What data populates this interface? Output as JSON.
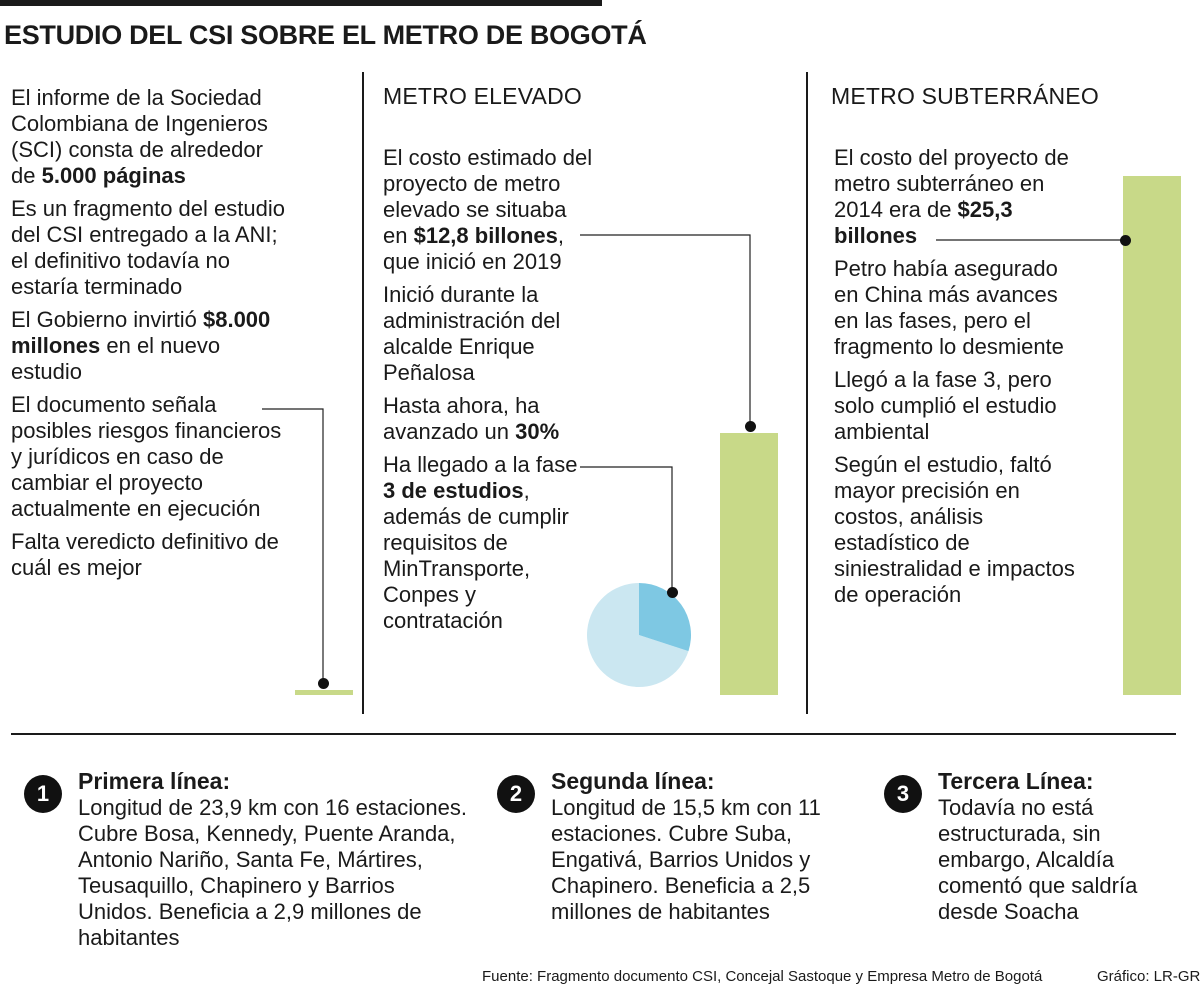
{
  "title": "ESTUDIO DEL CSI SOBRE EL METRO DE BOGOTÁ",
  "intro": {
    "paragraphs": [
      {
        "pre": "El informe de la Sociedad Colombiana de Ingenieros (SCI) consta de alrededor de ",
        "bold": "5.000 páginas",
        "post": ""
      },
      {
        "pre": "Es un fragmento del estudio del CSI entregado a la ANI; el definitivo todavía no estaría terminado",
        "bold": "",
        "post": ""
      },
      {
        "pre": "El Gobierno invirtió ",
        "bold": "$8.000 millones",
        "post": " en el nuevo estudio"
      },
      {
        "pre": "El documento señala posibles riesgos financieros y jurídicos en caso de cambiar el proyecto actualmente en ejecución",
        "bold": "",
        "post": ""
      },
      {
        "pre": "Falta veredicto definitivo de cuál es mejor",
        "bold": "",
        "post": ""
      }
    ]
  },
  "elevado": {
    "heading": "METRO ELEVADO",
    "paragraphs": [
      {
        "pre": "El costo estimado del proyecto de metro elevado se situaba en ",
        "bold": "$12,8 billones",
        "post": ", que inició en 2019"
      },
      {
        "pre": "Inició durante la administración del alcalde Enrique Peñalosa",
        "bold": "",
        "post": ""
      },
      {
        "pre": "Hasta ahora, ha avanzado un ",
        "bold": "30%",
        "post": ""
      },
      {
        "pre": "Ha llegado a la fase ",
        "bold": "3 de estudios",
        "post": ", además de cumplir requisitos de MinTransporte, Conpes y contratación"
      }
    ]
  },
  "subterraneo": {
    "heading": "METRO SUBTERRÁNEO",
    "paragraphs": [
      {
        "pre": "El costo del proyecto de metro subterráneo en 2014 era de ",
        "bold": "$25,3 billones",
        "post": ""
      },
      {
        "pre": "Petro había asegurado en China más avances en las fases, pero el fragmento lo desmiente",
        "bold": "",
        "post": ""
      },
      {
        "pre": "Llegó a la fase 3, pero solo cumplió el estudio ambiental",
        "bold": "",
        "post": ""
      },
      {
        "pre": "Según el estudio, faltó mayor precisión en costos, análisis estadístico de siniestralidad e impactos de operación",
        "bold": "",
        "post": ""
      }
    ]
  },
  "visual_values": {
    "bar_unit": "billones",
    "new_study_cost": 8000,
    "elevado_cost": 12.8,
    "subterraneo_cost": 25.3,
    "elevado_progress_fraction": 0.3,
    "bar_color": "#c8d988",
    "pie_progress_color": "#7ec8e3",
    "pie_rest_color": "#cbe7f1"
  },
  "lines": [
    {
      "number": "1",
      "title": "Primera línea:",
      "body": "Longitud de 23,9 km con 16 estaciones. Cubre Bosa, Kennedy, Puente Aranda, Antonio Nariño, Santa Fe, Mártires, Teusaquillo, Chapinero y Barrios Unidos. Beneficia a 2,9 millones de habitantes"
    },
    {
      "number": "2",
      "title": "Segunda línea:",
      "body": "Longitud de 15,5 km con 11 estaciones. Cubre Suba, Engativá, Barrios Unidos y Chapinero. Beneficia a 2,5 millones de habitantes"
    },
    {
      "number": "3",
      "title": "Tercera Línea:",
      "body": "Todavía no está estructurada, sin embargo, Alcaldía comentó que saldría desde Soacha"
    }
  ],
  "footer": {
    "source": "Fuente: Fragmento documento CSI, Concejal Sastoque y Empresa Metro de Bogotá",
    "credit": "Gráfico: LR-GR"
  }
}
